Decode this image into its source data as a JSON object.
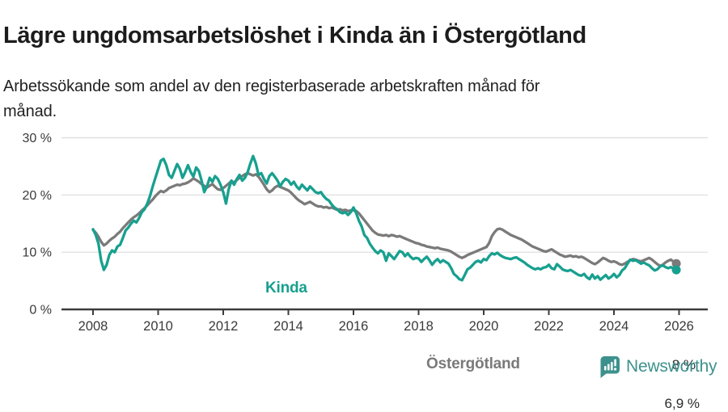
{
  "header": {
    "title": "Lägre ungdomsarbetslöshet i Kinda än i Östergötland",
    "subtitle_line1": "Arbetssökande som andel av den registerbaserade arbetskraften månad för",
    "subtitle_line2": "månad."
  },
  "chart_data": {
    "type": "line",
    "unit": "%",
    "x_start_year": 2008,
    "x_interval": "monthly",
    "x_end": "2025-12",
    "x_tick_years": [
      2008,
      2010,
      2012,
      2014,
      2016,
      2018,
      2020,
      2022,
      2024,
      2026
    ],
    "y_ticks": [
      0,
      10,
      20,
      30
    ],
    "y_tick_labels": [
      "0 %",
      "10 %",
      "20 %",
      "30 %"
    ],
    "ylim": [
      0,
      33
    ],
    "grid": "horizontal",
    "colors": {
      "kinda": "#17a08f",
      "ostergotland": "#7a7a7a",
      "axis": "#3c3c3c",
      "gridline": "#dcdcdc"
    },
    "series": [
      {
        "name": "Östergötland",
        "color": "#7a7a7a",
        "end_label": "8 %",
        "end_value": 8.0,
        "values": [
          13.9,
          13.4,
          12.7,
          11.8,
          11.2,
          11.5,
          12.0,
          12.4,
          12.7,
          13.2,
          13.6,
          14.2,
          14.7,
          15.2,
          15.7,
          16.1,
          16.4,
          16.8,
          17.3,
          17.7,
          18.2,
          18.7,
          19.2,
          19.8,
          20.3,
          20.7,
          20.5,
          20.8,
          21.2,
          21.4,
          21.6,
          21.8,
          21.7,
          21.9,
          22.0,
          22.2,
          22.5,
          22.9,
          22.6,
          22.3,
          21.9,
          21.6,
          21.3,
          21.6,
          21.9,
          21.4,
          21.0,
          20.9,
          21.2,
          21.6,
          22.0,
          22.4,
          22.2,
          22.6,
          23.0,
          23.3,
          23.6,
          23.8,
          23.6,
          23.4,
          23.6,
          23.2,
          22.5,
          21.8,
          21.0,
          20.5,
          20.8,
          21.3,
          21.6,
          21.4,
          21.2,
          21.0,
          20.8,
          20.4,
          19.9,
          19.4,
          19.0,
          18.7,
          18.4,
          18.6,
          18.8,
          18.5,
          18.2,
          18.0,
          18.0,
          17.8,
          17.9,
          17.7,
          17.8,
          17.6,
          17.4,
          17.5,
          17.3,
          17.4,
          17.2,
          17.3,
          17.4,
          17.2,
          16.8,
          16.2,
          15.6,
          15.0,
          14.4,
          13.8,
          13.4,
          13.1,
          13.0,
          12.9,
          13.0,
          12.8,
          13.0,
          12.9,
          12.7,
          12.8,
          12.6,
          12.4,
          12.2,
          12.0,
          11.8,
          11.6,
          11.5,
          11.3,
          11.2,
          11.0,
          10.9,
          10.8,
          10.7,
          10.8,
          10.6,
          10.5,
          10.4,
          10.3,
          10.1,
          9.8,
          9.5,
          9.2,
          9.0,
          9.2,
          9.5,
          9.7,
          9.9,
          10.1,
          10.3,
          10.5,
          10.7,
          10.9,
          11.6,
          12.8,
          13.5,
          14.0,
          14.1,
          13.9,
          13.6,
          13.3,
          13.0,
          12.8,
          12.6,
          12.4,
          12.2,
          11.9,
          11.6,
          11.3,
          11.0,
          10.8,
          10.6,
          10.4,
          10.2,
          10.1,
          10.3,
          10.5,
          10.2,
          9.9,
          9.6,
          9.4,
          9.2,
          9.3,
          9.4,
          9.2,
          9.3,
          9.1,
          9.2,
          9.0,
          8.7,
          8.4,
          8.1,
          7.9,
          8.2,
          8.6,
          9.0,
          8.8,
          8.5,
          8.3,
          8.4,
          8.2,
          7.9,
          7.8,
          8.0,
          8.3,
          8.6,
          8.8,
          8.7,
          8.5,
          8.4,
          8.6,
          8.8,
          9.0,
          8.7,
          8.3,
          7.9,
          7.6,
          7.8,
          8.2,
          8.5,
          8.7,
          8.3,
          8.0
        ]
      },
      {
        "name": "Kinda",
        "color": "#17a08f",
        "end_label": "6,9 %",
        "end_value": 6.9,
        "values": [
          14.0,
          13.0,
          11.5,
          8.5,
          6.9,
          7.8,
          9.5,
          10.3,
          10.0,
          11.0,
          11.3,
          12.5,
          13.8,
          14.3,
          15.0,
          15.5,
          15.2,
          16.0,
          17.0,
          17.5,
          18.5,
          19.8,
          21.5,
          23.0,
          24.5,
          26.0,
          26.3,
          25.2,
          23.5,
          23.0,
          24.2,
          25.4,
          24.6,
          23.0,
          24.0,
          25.2,
          24.0,
          23.2,
          24.8,
          24.2,
          22.5,
          20.5,
          21.5,
          23.0,
          22.3,
          23.3,
          22.8,
          21.8,
          20.5,
          18.5,
          21.0,
          22.5,
          21.8,
          22.8,
          23.5,
          22.5,
          23.0,
          24.0,
          25.5,
          26.8,
          25.5,
          23.5,
          23.8,
          22.8,
          22.0,
          23.3,
          23.8,
          23.2,
          22.5,
          21.5,
          22.3,
          22.8,
          22.5,
          21.8,
          22.3,
          21.5,
          21.0,
          21.8,
          21.3,
          20.8,
          21.5,
          21.0,
          20.5,
          20.3,
          20.5,
          19.8,
          19.3,
          19.0,
          18.3,
          17.8,
          17.5,
          17.0,
          16.8,
          17.0,
          16.5,
          17.0,
          17.8,
          16.8,
          15.5,
          14.5,
          13.0,
          12.5,
          11.5,
          10.8,
          10.2,
          9.8,
          10.3,
          10.0,
          8.5,
          9.8,
          9.3,
          8.8,
          9.5,
          10.2,
          10.0,
          9.3,
          9.8,
          9.2,
          8.8,
          9.0,
          8.9,
          8.3,
          8.8,
          9.2,
          8.6,
          7.8,
          8.4,
          8.8,
          8.2,
          8.6,
          8.3,
          8.0,
          7.2,
          6.2,
          5.8,
          5.3,
          5.1,
          6.0,
          7.0,
          7.3,
          7.8,
          8.3,
          8.5,
          8.2,
          8.8,
          8.6,
          9.3,
          9.8,
          9.6,
          9.9,
          9.5,
          9.2,
          9.0,
          8.9,
          8.8,
          9.0,
          9.1,
          8.8,
          8.5,
          8.2,
          7.8,
          7.5,
          7.2,
          7.0,
          7.2,
          7.0,
          7.3,
          7.4,
          7.8,
          7.2,
          7.0,
          7.9,
          7.5,
          7.0,
          6.8,
          6.7,
          6.9,
          6.6,
          6.3,
          6.0,
          5.9,
          6.2,
          5.6,
          5.3,
          6.1,
          5.4,
          5.8,
          5.2,
          5.6,
          6.0,
          5.4,
          5.7,
          6.2,
          5.6,
          6.0,
          6.8,
          7.2,
          8.0,
          8.7,
          8.5,
          8.6,
          8.3,
          8.0,
          8.2,
          7.9,
          7.7,
          7.2,
          6.8,
          7.0,
          7.5,
          7.7,
          7.4,
          7.2,
          7.4,
          7.1,
          6.9
        ]
      }
    ]
  },
  "footer": {
    "brand": "Newsworthy",
    "brand_color": "#3d918d"
  }
}
